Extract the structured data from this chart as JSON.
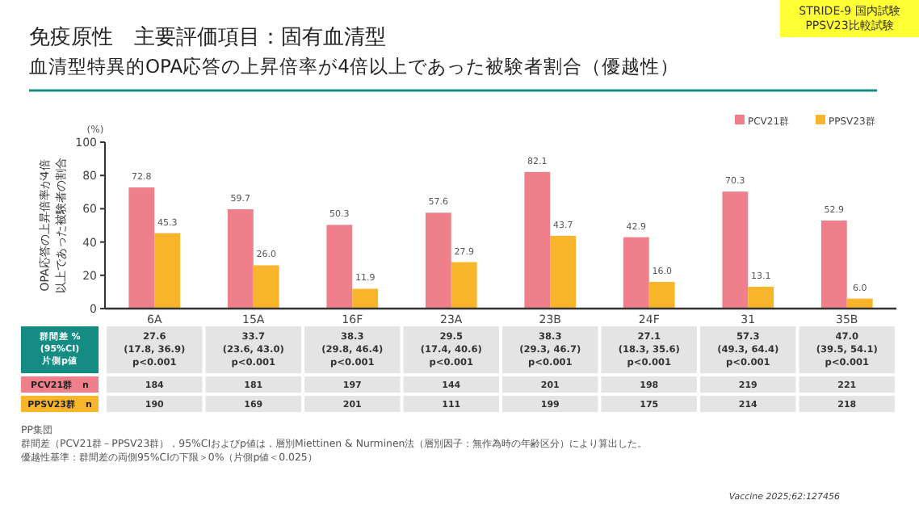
{
  "chart_data": {
    "type": "bar",
    "title": "免疫原性　主要評価項目：固有血清型",
    "subtitle": "血清型特異的OPA応答の上昇倍率が4倍以上であった被験者割合（優越性）",
    "ylabel": "OPA応答の上昇倍率が4倍以上であった被験者の割合",
    "categories": [
      "6A",
      "15A",
      "16F",
      "23A",
      "23B",
      "24F",
      "31",
      "35B"
    ],
    "series": [
      {
        "name": "PCV21群",
        "color": "#f07f8c",
        "values": [
          72.8,
          59.7,
          50.3,
          57.6,
          82.1,
          42.9,
          70.3,
          52.9
        ],
        "value_labels": [
          "72.8",
          "59.7",
          "50.3",
          "57.6",
          "82.1",
          "42.9",
          "70.3",
          "52.9"
        ]
      },
      {
        "name": "PPSV23群",
        "color": "#f8b42a",
        "values": [
          45.3,
          26.0,
          11.9,
          27.9,
          43.7,
          16.0,
          13.1,
          6.0
        ],
        "value_labels": [
          "45.3",
          "26.0",
          "11.9",
          "27.9",
          "43.7",
          "16.0",
          "13.1",
          "6.0"
        ]
      }
    ],
    "ylim": [
      0,
      100
    ],
    "yticks": [
      0,
      20,
      40,
      60,
      80,
      100
    ],
    "legend": "top right",
    "grid": false,
    "annotations": [
      "(%)",
      "STRIDE-9 国内試験\nPPSV23比較試験",
      "群間差 %\n(95%CI)\n片側p値",
      "PCV21群　n",
      "PPSV23群　n",
      "PP集団",
      "群間差（PCV21群－PPSV23群），95%CIおよびp値は，層別Miettinen & Nurminen法（層別因子：無作為時の年齢区分）により算出した。",
      "優越性基準：群間差の両側95%CIの下限＞0%（片側p値＜0.025）",
      "Vaccine 2025;62:127456",
      "27.6\n(17.8, 36.9)\np<0.001",
      "33.7\n(23.6, 43.0)\np<0.001",
      "38.3\n(29.8, 46.4)\np<0.001",
      "29.5\n(17.4, 40.6)\np<0.001",
      "38.3\n(29.3, 46.7)\np<0.001",
      "27.1\n(18.3, 35.6)\np<0.001",
      "57.3\n(49.3, 64.4)\np<0.001",
      "47.0\n(39.5, 54.1)\np<0.001",
      "184",
      "181",
      "197",
      "144",
      "201",
      "198",
      "219",
      "221",
      "190",
      "169",
      "201",
      "111",
      "199",
      "175",
      "214",
      "218"
    ]
  }
}
